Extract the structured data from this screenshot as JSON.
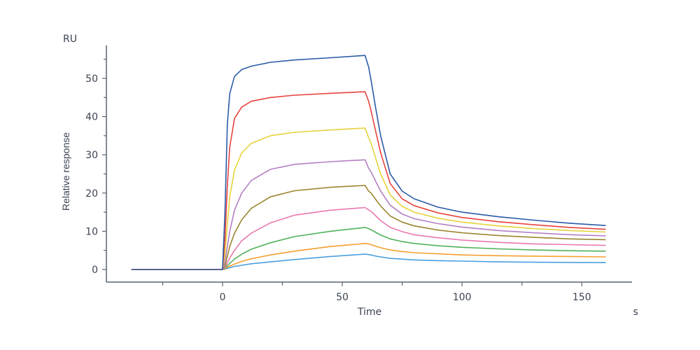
{
  "chart_data": {
    "type": "line",
    "xlabel": "Time",
    "xunit": "s",
    "ylabel": "Relative response",
    "yunit": "RU",
    "xlim": [
      -48.5,
      171
    ],
    "ylim": [
      -3.3,
      58.6
    ],
    "x_ticks": [
      0,
      50,
      100,
      150
    ],
    "x_minor_ticks": [
      -25,
      25,
      75,
      125
    ],
    "y_ticks": [
      0,
      10,
      20,
      30,
      40,
      50
    ],
    "y_minor_ticks": [
      5,
      15,
      25,
      35,
      45,
      55
    ],
    "grid": false,
    "legend": "none",
    "x": [
      -38,
      0,
      1,
      2,
      3,
      5,
      8,
      12,
      20,
      30,
      45,
      59.5,
      61,
      62,
      64,
      66,
      70,
      75,
      80,
      90,
      100,
      115,
      130,
      145,
      160
    ],
    "series": [
      {
        "color": "#2b5ba8",
        "values": [
          0,
          0,
          15,
          38,
          46,
          50.5,
          52.3,
          53.2,
          54.2,
          54.8,
          55.4,
          56,
          53,
          49.5,
          42,
          35,
          25,
          20.5,
          18.5,
          16.3,
          15,
          13.8,
          12.9,
          12.1,
          11.5
        ]
      },
      {
        "color": "#e8433d",
        "values": [
          0,
          0,
          8,
          22,
          32,
          39.5,
          42.5,
          44,
          45,
          45.6,
          46.1,
          46.5,
          44,
          41.5,
          36,
          30.5,
          22.5,
          18.5,
          16.7,
          14.8,
          13.6,
          12.5,
          11.7,
          11,
          10.5
        ]
      },
      {
        "color": "#e6d33c",
        "values": [
          0,
          0,
          4,
          12,
          19,
          26,
          30.5,
          33,
          35,
          35.9,
          36.5,
          37,
          34.5,
          33,
          29,
          25,
          19.5,
          16.5,
          15,
          13.4,
          12.4,
          11.4,
          10.7,
          10.2,
          9.8
        ]
      },
      {
        "color": "#b47fc4",
        "values": [
          0,
          0,
          2,
          6,
          10,
          15.5,
          20,
          23.3,
          26.2,
          27.5,
          28.2,
          28.7,
          26.5,
          25.5,
          23,
          20.5,
          16.8,
          14.5,
          13.3,
          12,
          11.1,
          10.2,
          9.6,
          9.1,
          8.8
        ]
      },
      {
        "color": "#9c8530",
        "values": [
          0,
          0,
          1,
          3.5,
          6,
          9.5,
          13,
          16,
          19,
          20.6,
          21.5,
          22,
          20.5,
          20,
          18.3,
          16.6,
          14,
          12.4,
          11.4,
          10.3,
          9.6,
          8.9,
          8.4,
          8.0,
          7.8
        ]
      },
      {
        "color": "#e879b0",
        "values": [
          0,
          0,
          0.5,
          1.8,
          3,
          5,
          7.5,
          9.5,
          12.2,
          14.2,
          15.5,
          16.2,
          15.6,
          15.2,
          14,
          12.8,
          11,
          9.9,
          9.1,
          8.3,
          7.7,
          7.1,
          6.7,
          6.5,
          6.3
        ]
      },
      {
        "color": "#4fb25a",
        "values": [
          0,
          0,
          0.3,
          1,
          1.6,
          2.7,
          4,
          5.3,
          7,
          8.6,
          10,
          11,
          10.7,
          10.4,
          9.7,
          9,
          8,
          7.3,
          6.8,
          6.2,
          5.8,
          5.4,
          5.1,
          4.9,
          4.8
        ]
      },
      {
        "color": "#f5a030",
        "values": [
          0,
          0,
          0.2,
          0.6,
          0.9,
          1.4,
          2.1,
          2.8,
          3.8,
          4.8,
          6,
          6.8,
          6.7,
          6.5,
          6.1,
          5.7,
          5.1,
          4.7,
          4.4,
          4.1,
          3.8,
          3.6,
          3.5,
          3.4,
          3.3
        ]
      },
      {
        "color": "#4aa0e0",
        "values": [
          0,
          0,
          0.1,
          0.3,
          0.5,
          0.8,
          1.1,
          1.5,
          2,
          2.6,
          3.4,
          4,
          3.9,
          3.8,
          3.5,
          3.3,
          2.9,
          2.7,
          2.5,
          2.3,
          2.2,
          2.0,
          1.9,
          1.85,
          1.8
        ]
      }
    ],
    "axis_color": "#5a6270"
  }
}
